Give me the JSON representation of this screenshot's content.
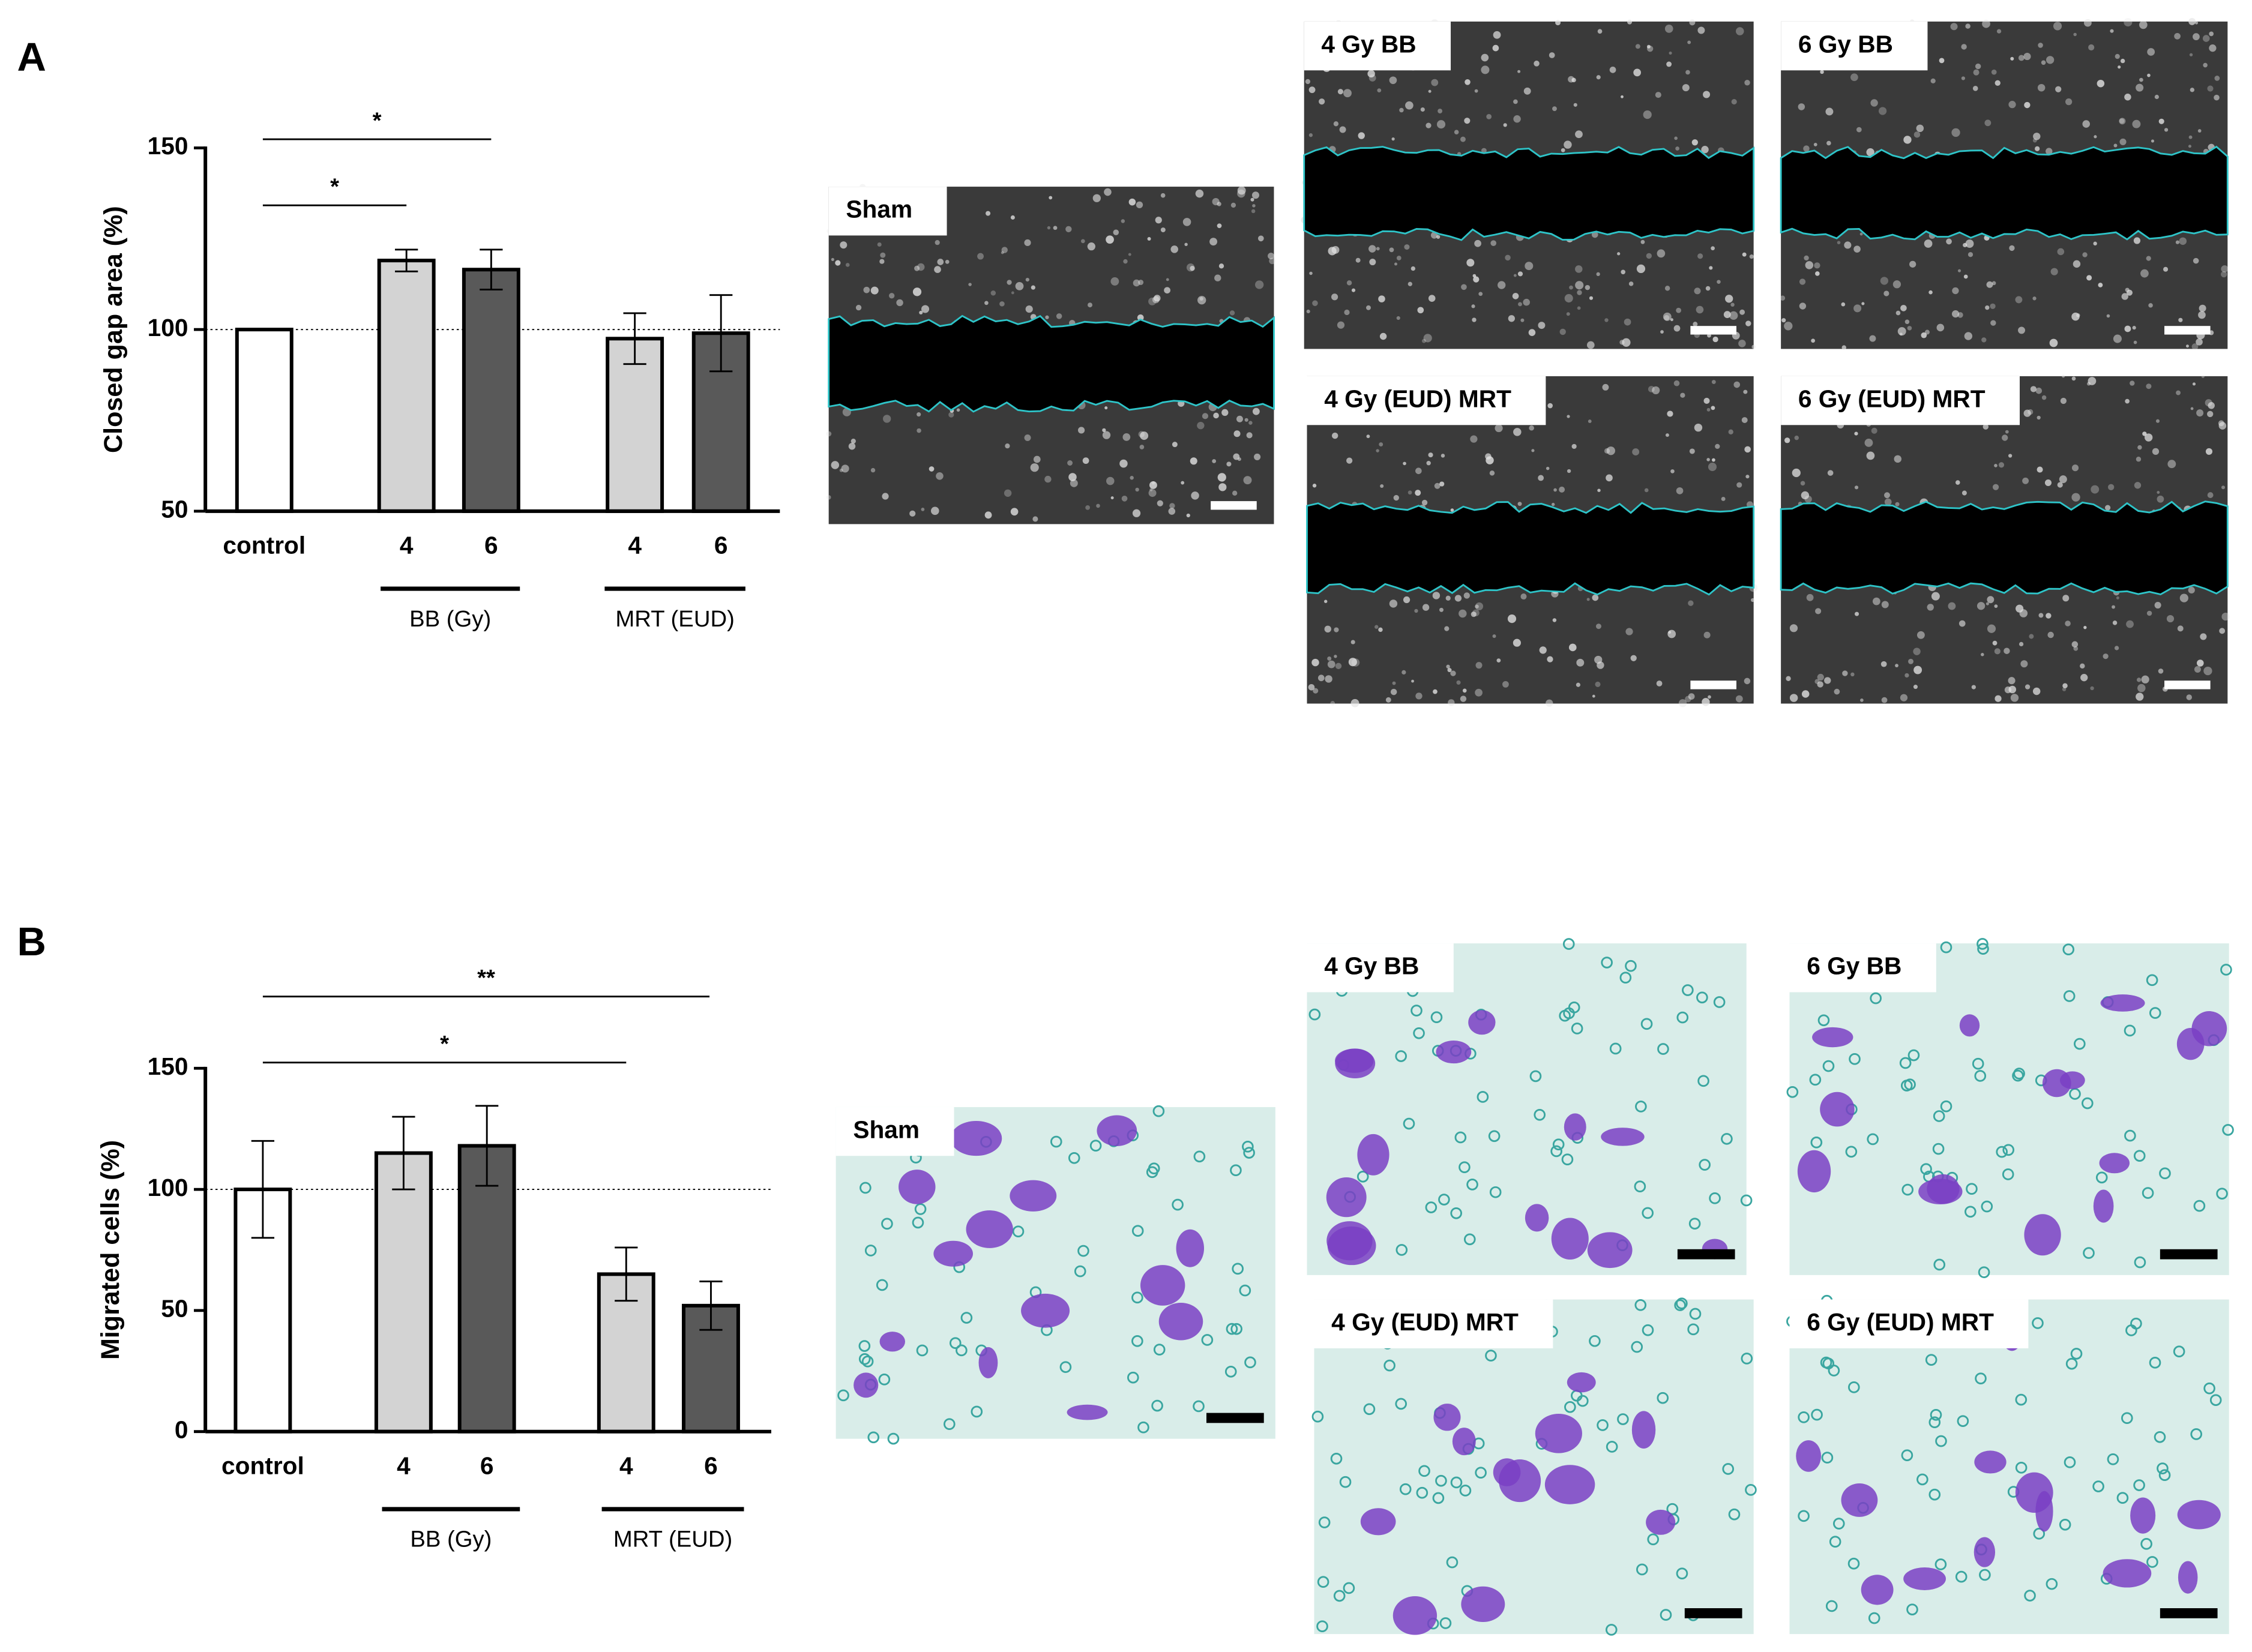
{
  "chart_data": [
    {
      "type": "bar",
      "y_label": "Closed gap area (%)",
      "categories": [
        "control",
        "4",
        "6",
        "4",
        "6"
      ],
      "values": [
        100,
        119,
        116.5,
        97.5,
        99
      ],
      "errors": [
        0,
        3,
        5.5,
        7,
        10.5
      ],
      "colors": [
        "#ffffff",
        "#d3d3d3",
        "#595959",
        "#d3d3d3",
        "#595959"
      ],
      "groups": [
        "BB (Gy)",
        "MRT (EUD)"
      ],
      "annotations": [
        "*",
        "*"
      ],
      "reference_line": 100,
      "ylim": [
        50,
        150
      ],
      "yticks": [
        50,
        100,
        150
      ]
    },
    {
      "type": "bar",
      "y_label": "Migrated cells (%)",
      "categories": [
        "control",
        "4",
        "6",
        "4",
        "6"
      ],
      "values": [
        100,
        115,
        118,
        65,
        52
      ],
      "errors": [
        20,
        15,
        16.5,
        11,
        10
      ],
      "colors": [
        "#ffffff",
        "#d3d3d3",
        "#595959",
        "#d3d3d3",
        "#595959"
      ],
      "groups": [
        "BB (Gy)",
        "MRT (EUD)"
      ],
      "annotations": [
        "**",
        "*"
      ],
      "reference_line": 100,
      "ylim": [
        0,
        150
      ],
      "yticks": [
        0,
        50,
        100,
        150
      ]
    }
  ],
  "panels": [
    {
      "label": "A",
      "images": [
        "Sham",
        "4 Gy BB",
        "6 Gy BB",
        "4 Gy (EUD) MRT",
        "6 Gy (EUD) MRT"
      ]
    },
    {
      "label": "B",
      "images": [
        "Sham",
        "4 Gy BB",
        "6 Gy BB",
        "4 Gy (EUD) MRT",
        "6 Gy (EUD) MRT"
      ]
    }
  ]
}
